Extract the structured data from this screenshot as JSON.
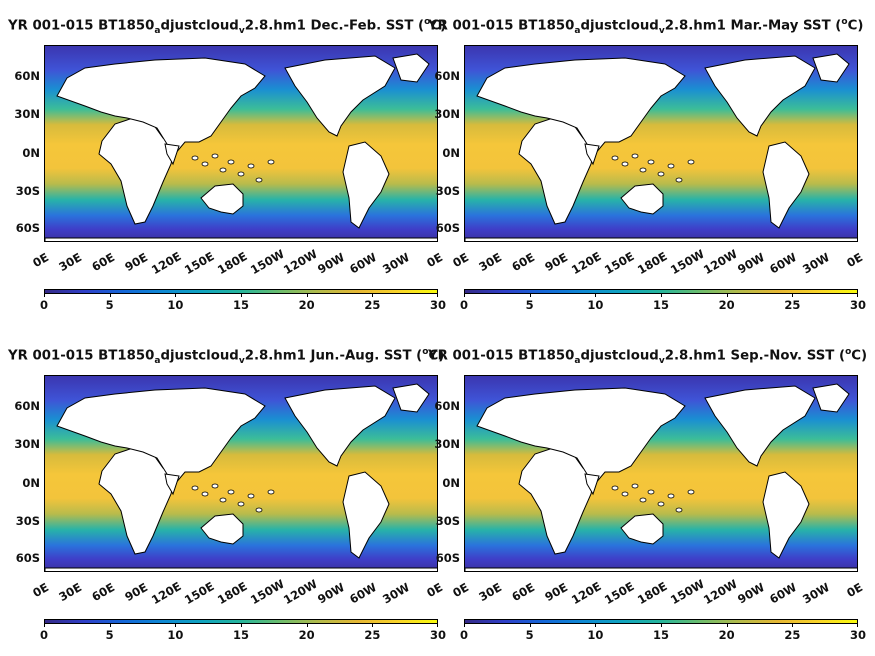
{
  "panels": [
    {
      "title_pre": "YR 001-015 BT1850",
      "title_sub": "a",
      "title_mid": "djustcloud",
      "title_sub2": "v",
      "title_post": "2.8.hm1 Dec.-Feb. SST (",
      "title_sup": "o",
      "title_end": "C)"
    },
    {
      "title_pre": "YR 001-015 BT1850",
      "title_sub": "a",
      "title_mid": "djustcloud",
      "title_sub2": "v",
      "title_post": "2.8.hm1 Mar.-May SST (",
      "title_sup": "o",
      "title_end": "C)"
    },
    {
      "title_pre": "YR 001-015 BT1850",
      "title_sub": "a",
      "title_mid": "djustcloud",
      "title_sub2": "v",
      "title_post": "2.8.hm1 Jun.-Aug. SST (",
      "title_sup": "o",
      "title_end": "C)"
    },
    {
      "title_pre": "YR 001-015 BT1850",
      "title_sub": "a",
      "title_mid": "djustcloud",
      "title_sub2": "v",
      "title_post": "2.8.hm1 Sep.-Nov. SST (",
      "title_sup": "o",
      "title_end": "C)"
    }
  ],
  "lat_ticks": [
    "60N",
    "30N",
    "0N",
    "30S",
    "60S"
  ],
  "lon_ticks": [
    "0E",
    "30E",
    "60E",
    "90E",
    "120E",
    "150E",
    "180E",
    "150W",
    "120W",
    "90W",
    "60W",
    "30W",
    "0E"
  ],
  "colorbar_ticks": [
    "0",
    "5",
    "10",
    "15",
    "20",
    "25",
    "30"
  ],
  "colors": {
    "land": "#ffffff",
    "cold": "#352a87",
    "mid": "#1fa8b8",
    "warm": "#f7c935"
  }
}
